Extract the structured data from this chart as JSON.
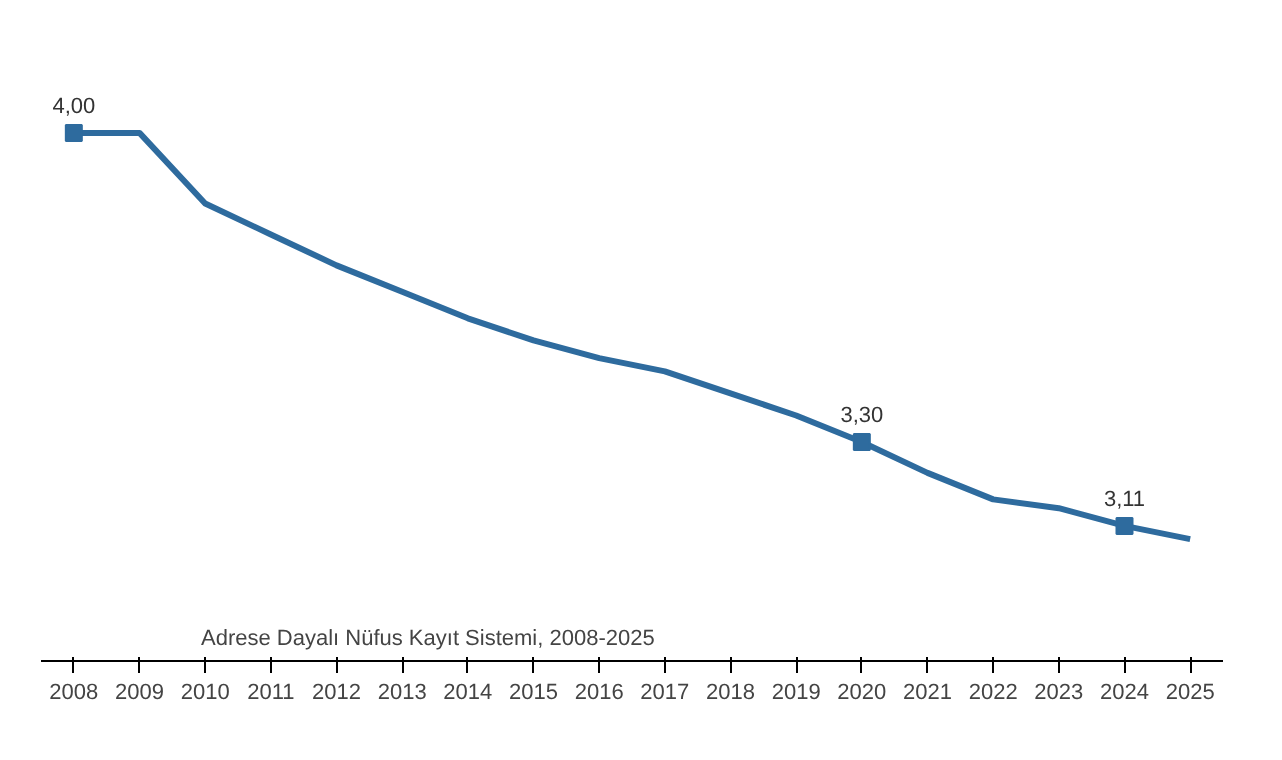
{
  "chart_data": {
    "type": "line",
    "categories": [
      "2008",
      "2009",
      "2010",
      "2011",
      "2012",
      "2013",
      "2014",
      "2015",
      "2016",
      "2017",
      "2018",
      "2019",
      "2020",
      "2021",
      "2022",
      "2023",
      "2024",
      "2025"
    ],
    "series": [
      {
        "color": "#2e6b9e",
        "values": [
          4.0,
          4.0,
          3.84,
          3.77,
          3.7,
          3.64,
          3.58,
          3.53,
          3.49,
          3.46,
          3.41,
          3.36,
          3.3,
          3.23,
          3.17,
          3.15,
          3.11,
          3.08
        ],
        "value_labels": [
          "4,00",
          null,
          null,
          null,
          null,
          null,
          null,
          null,
          null,
          null,
          null,
          null,
          "3,30",
          null,
          null,
          null,
          "3,11",
          null
        ]
      }
    ],
    "tick_labels": "x",
    "grid": false,
    "line_style": "solid",
    "annotations": [
      "Adrese Dayalı Nüfus Kayıt Sistemi, 2008-2025"
    ]
  }
}
